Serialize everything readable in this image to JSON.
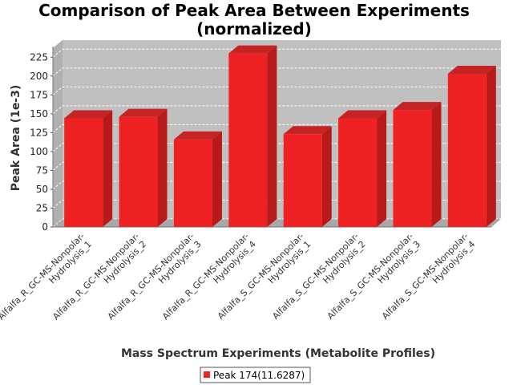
{
  "chart_data": {
    "type": "bar",
    "title": "Comparison of Peak Area Between Experiments",
    "subtitle": "(normalized)",
    "xlabel": "Mass Spectrum Experiments (Metabolite Profiles)",
    "ylabel": "Peak Area (1e-3)",
    "ylim": [
      0,
      237
    ],
    "yticks": [
      0,
      25,
      50,
      75,
      100,
      125,
      150,
      175,
      200,
      225
    ],
    "grid": true,
    "legend_position": "bottom",
    "categories": [
      [
        "Alfalfa_R_GC-MS-Nonpolar-",
        "Hydrolysis_1"
      ],
      [
        "Alfalfa_R_GC-MS-Nonpolar-",
        "Hydrolysis_2"
      ],
      [
        "Alfalfa_R_GC-MS-Nonpolar-",
        "Hydrolysis_3"
      ],
      [
        "Alfalfa_R_GC-MS-Nonpolar-",
        "Hydrolysis_4"
      ],
      [
        "Alfalfa_S_GC-MS-Nonpolar-",
        "Hydrolysis_1"
      ],
      [
        "Alfalfa_S_GC-MS-Nonpolar-",
        "Hydrolysis_2"
      ],
      [
        "Alfalfa_S_GC-MS-Nonpolar-",
        "Hydrolysis_3"
      ],
      [
        "Alfalfa_S_GC-MS-Nonpolar-",
        "Hydrolysis_4"
      ]
    ],
    "series": [
      {
        "name": "Peak 174(11.6287)",
        "color": "#ee2222",
        "values": [
          144,
          146,
          116,
          230,
          123,
          144,
          155,
          203
        ]
      }
    ]
  }
}
